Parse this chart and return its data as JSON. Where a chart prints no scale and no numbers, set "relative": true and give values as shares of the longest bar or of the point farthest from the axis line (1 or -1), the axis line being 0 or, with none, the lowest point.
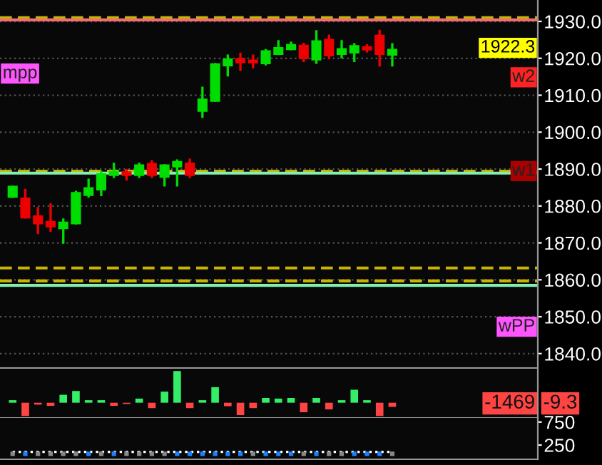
{
  "chart_data": [
    {
      "type": "candlestick",
      "categories": [
        null,
        null,
        null,
        null,
        null,
        null,
        null,
        null,
        null,
        null,
        null,
        null,
        null,
        null,
        null,
        null,
        null,
        null,
        null,
        null,
        null,
        null,
        null,
        null,
        null,
        null,
        null,
        null,
        null,
        null,
        null,
        null,
        null,
        null,
        null,
        null,
        null,
        null,
        null,
        null,
        null,
        null
      ],
      "ohlc": [
        [
          1882.5,
          1885.2,
          1882.5,
          1885.2
        ],
        [
          1882.0,
          1884.3,
          1876.9,
          1876.9
        ],
        [
          1877.2,
          1879.4,
          1872.7,
          1875.3
        ],
        [
          1875.7,
          1880.4,
          1873.3,
          1874.5
        ],
        [
          1874.0,
          1876.3,
          1870.1,
          1875.5
        ],
        [
          1875.3,
          1883.8,
          1875.3,
          1883.5
        ],
        [
          1883.0,
          1887.1,
          1882.6,
          1884.8
        ],
        [
          1884.5,
          1889.2,
          1883.0,
          1888.6
        ],
        [
          1888.4,
          1891.4,
          1887.9,
          1889.2
        ],
        [
          1889.1,
          1889.7,
          1887.2,
          1888.4
        ],
        [
          1888.4,
          1891.4,
          1887.9,
          1891.0
        ],
        [
          1891.4,
          1892.1,
          1887.9,
          1888.4
        ],
        [
          1887.9,
          1891.0,
          1885.6,
          1891.0
        ],
        [
          1890.7,
          1892.3,
          1885.6,
          1891.9
        ],
        [
          1891.5,
          1892.5,
          1887.9,
          1888.4
        ],
        [
          1905.8,
          1912.0,
          1904.2,
          1908.8
        ],
        [
          1908.5,
          1918.4,
          1908.5,
          1918.4
        ],
        [
          1918.1,
          1920.7,
          1915.4,
          1919.7
        ],
        [
          1919.8,
          1921.2,
          1916.9,
          1918.9
        ],
        [
          1919.4,
          1920.7,
          1917.6,
          1918.9
        ],
        [
          1918.7,
          1922.2,
          1918.4,
          1921.9
        ],
        [
          1921.2,
          1924.6,
          1921.2,
          1922.8
        ],
        [
          1922.5,
          1924.2,
          1922.5,
          1923.6
        ],
        [
          1923.4,
          1923.9,
          1919.3,
          1920.1
        ],
        [
          1919.7,
          1927.3,
          1918.8,
          1924.6
        ],
        [
          1925.0,
          1926.1,
          1920.1,
          1920.8
        ],
        [
          1921.2,
          1924.6,
          1920.3,
          1922.5
        ],
        [
          1921.6,
          1923.8,
          1919.3,
          1923.3
        ],
        [
          1923.0,
          1923.5,
          1921.9,
          1922.4
        ],
        [
          1926.1,
          1927.4,
          1918.1,
          1921.2
        ],
        [
          1921.0,
          1923.8,
          1918.1,
          1922.3
        ],
        null,
        null,
        null,
        null,
        null,
        null,
        null,
        null,
        null,
        null,
        null
      ],
      "colors": [
        "#00dd00",
        "#ee0000",
        "#ee0000",
        "#ee0000",
        "#00dd00",
        "#00dd00",
        "#00dd00",
        "#00dd00",
        "#00dd00",
        "#ee0000",
        "#00dd00",
        "#ee0000",
        "#00dd00",
        "#00dd00",
        "#ee0000",
        "#00dd00",
        "#00dd00",
        "#00dd00",
        "#ee0000",
        "#ee0000",
        "#00dd00",
        "#00dd00",
        "#00dd00",
        "#ee0000",
        "#00dd00",
        "#ee0000",
        "#00dd00",
        "#00dd00",
        "#ee0000",
        "#ee0000",
        "#00dd00",
        null,
        null,
        null,
        null,
        null,
        null,
        null,
        null,
        null,
        null,
        null
      ],
      "ylim": [
        1836.1,
        1935.8
      ],
      "yticks": [
        {
          "value": 1840,
          "label": "1840.0"
        },
        {
          "value": 1850,
          "label": "1850.0"
        },
        {
          "value": 1860,
          "label": "1860.0"
        },
        {
          "value": 1870,
          "label": "1870.0"
        },
        {
          "value": 1880,
          "label": "1880.0"
        },
        {
          "value": 1890,
          "label": "1890.0"
        },
        {
          "value": 1900,
          "label": "1900.0"
        },
        {
          "value": 1910,
          "label": "1910.0"
        },
        {
          "value": 1920,
          "label": "1920.0"
        },
        {
          "value": 1930,
          "label": "1930.0"
        }
      ],
      "tick_labels": "y",
      "grid": "y",
      "ref_lines": [
        {
          "axis": "y",
          "value": 1931.0,
          "color": "#c8b400",
          "line_style": "dashed"
        },
        {
          "axis": "y",
          "value": 1930.4,
          "color": "#f07070",
          "line_style": "solid"
        },
        {
          "axis": "y",
          "value": 1889.4,
          "color": "#c8b400",
          "line_style": "dashed"
        },
        {
          "axis": "y",
          "value": 1888.9,
          "color": "#80f0b0",
          "line_style": "solid"
        },
        {
          "axis": "y",
          "value": 1863.2,
          "color": "#c8b400",
          "line_style": "dashed"
        },
        {
          "axis": "y",
          "value": 1859.7,
          "color": "#c8b400",
          "line_style": "dashed"
        },
        {
          "axis": "y",
          "value": 1858.5,
          "color": "#80f0b0",
          "line_style": "solid"
        }
      ],
      "annotations": [
        "mpp",
        "1922.3",
        "w2",
        "w1",
        "wPP"
      ]
    },
    {
      "type": "bar",
      "relative": true,
      "categories": [
        null,
        null,
        null,
        null,
        null,
        null,
        null,
        null,
        null,
        null,
        null,
        null,
        null,
        null,
        null,
        null,
        null,
        null,
        null,
        null,
        null,
        null,
        null,
        null,
        null,
        null,
        null,
        null,
        null,
        null,
        null,
        null,
        null,
        null,
        null,
        null,
        null,
        null,
        null,
        null,
        null,
        null
      ],
      "values": [
        0.08,
        -0.42,
        -0.06,
        -0.1,
        0.25,
        0.37,
        0.08,
        0.08,
        -0.1,
        -0.04,
        0.13,
        -0.17,
        0.35,
        1,
        -0.17,
        0.08,
        0.49,
        -0.11,
        -0.39,
        -0.17,
        0.15,
        0.13,
        0.15,
        -0.3,
        0.15,
        -0.21,
        0.08,
        0.41,
        0.08,
        -0.42,
        -0.13,
        null,
        null,
        null,
        null,
        null,
        null,
        null,
        null,
        null,
        null,
        null
      ],
      "colors": [
        "#33ee66",
        "#ff4444",
        "#ff4444",
        "#ff4444",
        "#33ee66",
        "#33ee66",
        "#33ee66",
        "#33ee66",
        "#ff4444",
        "#ff4444",
        "#33ee66",
        "#ff4444",
        "#33ee66",
        "#33ee66",
        "#ff4444",
        "#33ee66",
        "#33ee66",
        "#ff4444",
        "#ff4444",
        "#ff4444",
        "#33ee66",
        "#33ee66",
        "#33ee66",
        "#ff4444",
        "#33ee66",
        "#ff4444",
        "#33ee66",
        "#33ee66",
        "#33ee66",
        "#ff4444",
        "#ff4444",
        null,
        null,
        null,
        null,
        null,
        null,
        null,
        null,
        null,
        null,
        null
      ],
      "tick_labels": false,
      "annotations": [
        "-1469",
        "-9.3"
      ]
    },
    {
      "type": "line",
      "categories": [
        null,
        null,
        null,
        null,
        null,
        null,
        null,
        null,
        null,
        null,
        null,
        null,
        null,
        null,
        null,
        null,
        null,
        null,
        null,
        null,
        null,
        null,
        null,
        null,
        null,
        null,
        null,
        null,
        null,
        null,
        null,
        null,
        null,
        null,
        null,
        null,
        null,
        null,
        null,
        null,
        null,
        null
      ],
      "series": [
        {
          "type": "line",
          "color": "#ffffff",
          "line_style": "dotted",
          "values": [
            100,
            100,
            100,
            100,
            100,
            100,
            100,
            100,
            100,
            100,
            100,
            100,
            100,
            100,
            100,
            100,
            100,
            100,
            100,
            100,
            100,
            100,
            100,
            100,
            100,
            100,
            100,
            100,
            100,
            100,
            100,
            null,
            null,
            null,
            null,
            null,
            null,
            null,
            null,
            null,
            null,
            null
          ]
        },
        {
          "type": "scatter",
          "marker": "square",
          "colors": [
            "#888888",
            "#1e7fff",
            "#888888",
            "#888888",
            "#888888",
            "#888888",
            "#1e7fff",
            "#888888",
            "#1e7fff",
            "#888888",
            "#888888",
            "#888888",
            "#888888",
            "#1e7fff",
            "#1e7fff",
            "#1e7fff",
            "#1e7fff",
            "#1e7fff",
            "#1e7fff",
            "#888888",
            "#1e7fff",
            "#1e7fff",
            "#1e7fff",
            "#888888",
            "#1e7fff",
            "#888888",
            "#888888",
            "#1e7fff",
            "#1e7fff",
            "#1e7fff",
            "#888888",
            null,
            null,
            null,
            null,
            null,
            null,
            null,
            null,
            null,
            null,
            null
          ],
          "values": [
            60,
            60,
            60,
            60,
            60,
            60,
            60,
            60,
            60,
            60,
            60,
            60,
            60,
            60,
            60,
            60,
            60,
            60,
            60,
            60,
            60,
            60,
            60,
            60,
            60,
            60,
            60,
            60,
            60,
            60,
            60,
            null,
            null,
            null,
            null,
            null,
            null,
            null,
            null,
            null,
            null,
            null
          ]
        }
      ],
      "ylim": [
        -60,
        840
      ],
      "yticks": [
        250,
        750
      ],
      "tick_labels": "y"
    }
  ]
}
